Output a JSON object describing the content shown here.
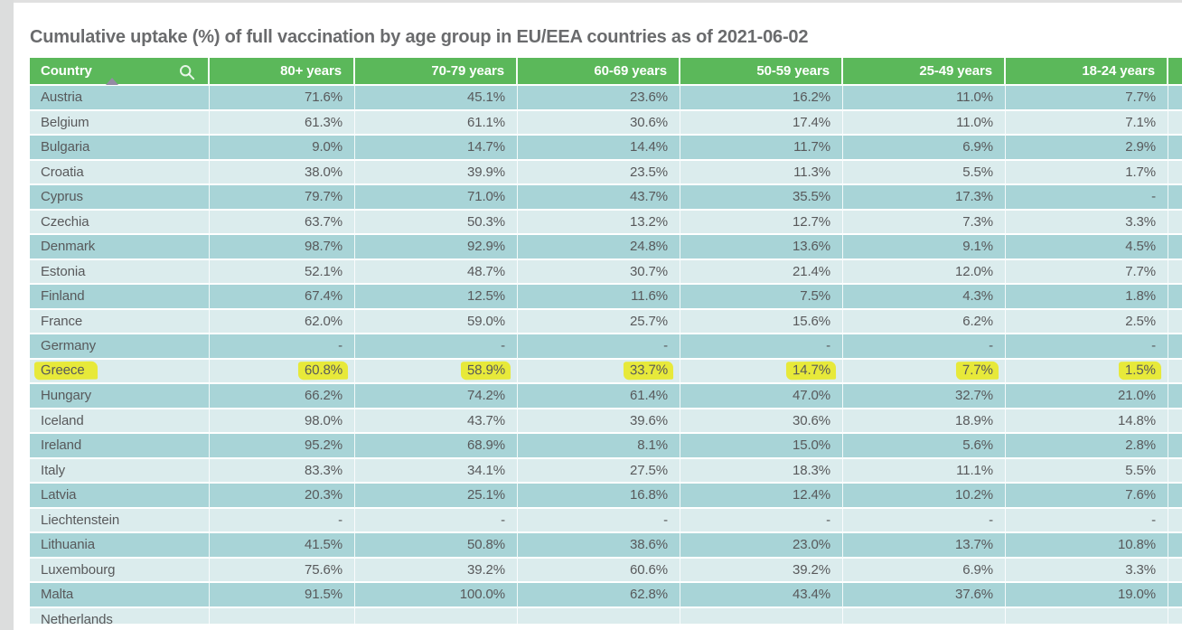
{
  "title": "Cumulative uptake (%) of full vaccination by age group in EU/EEA countries as of 2021-06-02",
  "table": {
    "columns": [
      "Country",
      "80+ years",
      "70-79 years",
      "60-69 years",
      "50-59 years",
      "25-49 years",
      "18-24 years"
    ],
    "rows": [
      {
        "country": "Austria",
        "highlighted": false,
        "values": [
          "71.6%",
          "45.1%",
          "23.6%",
          "16.2%",
          "11.0%",
          "7.7%"
        ]
      },
      {
        "country": "Belgium",
        "highlighted": false,
        "values": [
          "61.3%",
          "61.1%",
          "30.6%",
          "17.4%",
          "11.0%",
          "7.1%"
        ]
      },
      {
        "country": "Bulgaria",
        "highlighted": false,
        "values": [
          "9.0%",
          "14.7%",
          "14.4%",
          "11.7%",
          "6.9%",
          "2.9%"
        ]
      },
      {
        "country": "Croatia",
        "highlighted": false,
        "values": [
          "38.0%",
          "39.9%",
          "23.5%",
          "11.3%",
          "5.5%",
          "1.7%"
        ]
      },
      {
        "country": "Cyprus",
        "highlighted": false,
        "values": [
          "79.7%",
          "71.0%",
          "43.7%",
          "35.5%",
          "17.3%",
          "-"
        ]
      },
      {
        "country": "Czechia",
        "highlighted": false,
        "values": [
          "63.7%",
          "50.3%",
          "13.2%",
          "12.7%",
          "7.3%",
          "3.3%"
        ]
      },
      {
        "country": "Denmark",
        "highlighted": false,
        "values": [
          "98.7%",
          "92.9%",
          "24.8%",
          "13.6%",
          "9.1%",
          "4.5%"
        ]
      },
      {
        "country": "Estonia",
        "highlighted": false,
        "values": [
          "52.1%",
          "48.7%",
          "30.7%",
          "21.4%",
          "12.0%",
          "7.7%"
        ]
      },
      {
        "country": "Finland",
        "highlighted": false,
        "values": [
          "67.4%",
          "12.5%",
          "11.6%",
          "7.5%",
          "4.3%",
          "1.8%"
        ]
      },
      {
        "country": "France",
        "highlighted": false,
        "values": [
          "62.0%",
          "59.0%",
          "25.7%",
          "15.6%",
          "6.2%",
          "2.5%"
        ]
      },
      {
        "country": "Germany",
        "highlighted": false,
        "values": [
          "-",
          "-",
          "-",
          "-",
          "-",
          "-"
        ]
      },
      {
        "country": "Greece",
        "highlighted": true,
        "values": [
          "60.8%",
          "58.9%",
          "33.7%",
          "14.7%",
          "7.7%",
          "1.5%"
        ]
      },
      {
        "country": "Hungary",
        "highlighted": false,
        "values": [
          "66.2%",
          "74.2%",
          "61.4%",
          "47.0%",
          "32.7%",
          "21.0%"
        ]
      },
      {
        "country": "Iceland",
        "highlighted": false,
        "values": [
          "98.0%",
          "43.7%",
          "39.6%",
          "30.6%",
          "18.9%",
          "14.8%"
        ]
      },
      {
        "country": "Ireland",
        "highlighted": false,
        "values": [
          "95.2%",
          "68.9%",
          "8.1%",
          "15.0%",
          "5.6%",
          "2.8%"
        ]
      },
      {
        "country": "Italy",
        "highlighted": false,
        "values": [
          "83.3%",
          "34.1%",
          "27.5%",
          "18.3%",
          "11.1%",
          "5.5%"
        ]
      },
      {
        "country": "Latvia",
        "highlighted": false,
        "values": [
          "20.3%",
          "25.1%",
          "16.8%",
          "12.4%",
          "10.2%",
          "7.6%"
        ]
      },
      {
        "country": "Liechtenstein",
        "highlighted": false,
        "values": [
          "-",
          "-",
          "-",
          "-",
          "-",
          "-"
        ]
      },
      {
        "country": "Lithuania",
        "highlighted": false,
        "values": [
          "41.5%",
          "50.8%",
          "38.6%",
          "23.0%",
          "13.7%",
          "10.8%"
        ]
      },
      {
        "country": "Luxembourg",
        "highlighted": false,
        "values": [
          "75.6%",
          "39.2%",
          "60.6%",
          "39.2%",
          "6.9%",
          "3.3%"
        ]
      },
      {
        "country": "Malta",
        "highlighted": false,
        "values": [
          "91.5%",
          "100.0%",
          "62.8%",
          "43.4%",
          "37.6%",
          "19.0%"
        ]
      },
      {
        "country": "Netherlands",
        "highlighted": false,
        "clipped": true,
        "values": [
          "",
          "",
          "",
          "",
          "",
          ""
        ]
      }
    ]
  },
  "icons": {
    "country_header": [
      "search-icon",
      "sort-ascending-icon"
    ]
  },
  "colors": {
    "header_green": "#5bb85a",
    "row_dark": "#a8d4d7",
    "row_light": "#dbeced",
    "highlight_yellow": "#e7e93a",
    "text_gray": "#58595b",
    "title_gray": "#6a6b6d",
    "sort_arrow": "#948ba4",
    "left_strip": "#dcdddd"
  }
}
